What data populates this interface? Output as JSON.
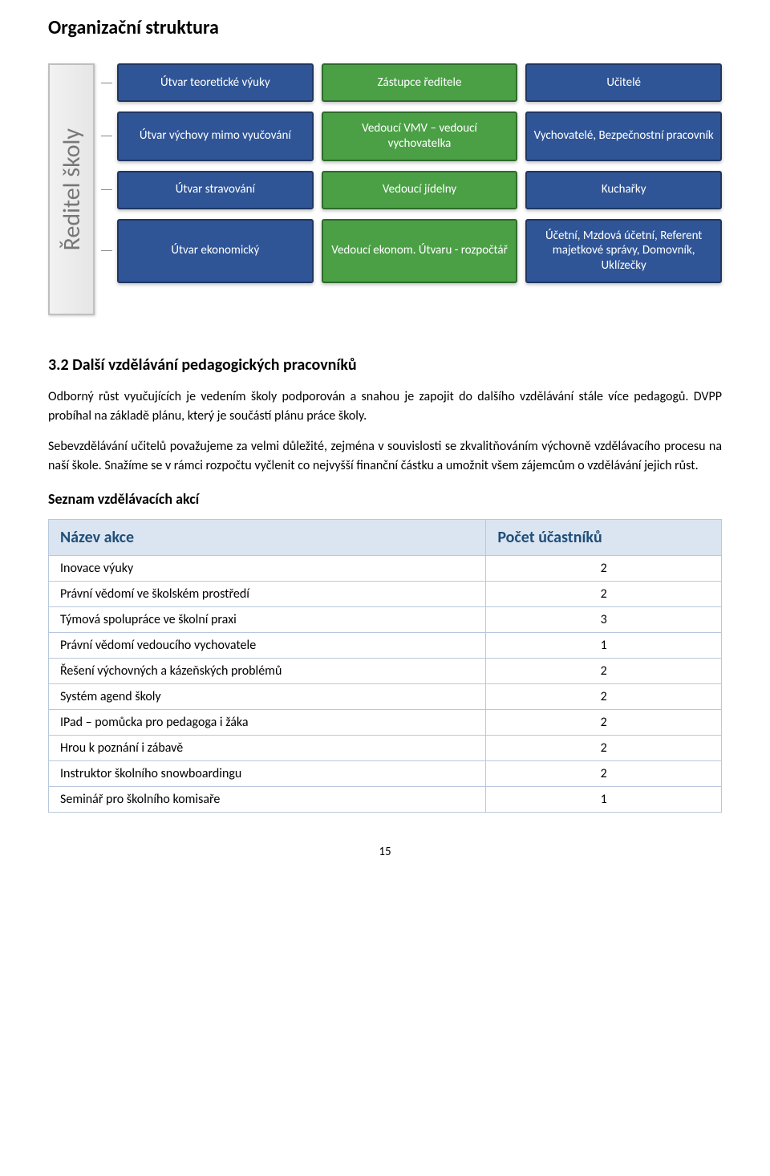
{
  "title": "Organizační struktura",
  "org": {
    "root_label": "Ředitel školy",
    "colors": {
      "blue_bg": "#2f5597",
      "blue_border": "#1f3763",
      "green_bg": "#4ba046",
      "green_border": "#2e6b2b",
      "root_bg": "#ededed",
      "root_border": "#bfbfbf",
      "root_text": "#777777"
    },
    "rows": [
      {
        "cells": [
          {
            "text": "Útvar teoretické výuky",
            "color": "blue"
          },
          {
            "text": "Zástupce ředitele",
            "color": "green"
          },
          {
            "text": "Učitelé",
            "color": "blue"
          }
        ]
      },
      {
        "cells": [
          {
            "text": "Útvar výchovy mimo vyučování",
            "color": "blue"
          },
          {
            "text": "Vedoucí VMV – vedoucí vychovatelka",
            "color": "green"
          },
          {
            "text": "Vychovatelé, Bezpečnostní pracovník",
            "color": "blue"
          }
        ]
      },
      {
        "cells": [
          {
            "text": "Útvar stravování",
            "color": "blue"
          },
          {
            "text": "Vedoucí jídelny",
            "color": "green"
          },
          {
            "text": "Kuchařky",
            "color": "blue"
          }
        ]
      },
      {
        "cells": [
          {
            "text": "Útvar ekonomický",
            "color": "blue"
          },
          {
            "text": "Vedoucí ekonom. Útvaru - rozpočtář",
            "color": "green"
          },
          {
            "text": "Účetní, Mzdová účetní, Referent majetkové správy, Domovník, Uklízečky",
            "color": "blue"
          }
        ]
      }
    ]
  },
  "section": {
    "heading": "3.2 Další vzdělávání pedagogických pracovníků",
    "para1": "Odborný růst vyučujících je vedením školy podporován a snahou je zapojit do dalšího vzdělávání stále více pedagogů. DVPP probíhal na základě plánu, který je součástí plánu práce školy.",
    "para2": "Sebevzdělávání učitelů považujeme za velmi důležité, zejména v souvislosti se zkvalitňováním výchovně vzdělávacího procesu na naší škole. Snažíme se v rámci rozpočtu vyčlenit co nejvyšší finanční částku a umožnit všem zájemcům o vzdělávání jejich růst.",
    "list_heading": "Seznam vzdělávacích akcí"
  },
  "table": {
    "header_name": "Název akce",
    "header_count": "Počet účastníků",
    "header_bg": "#dbe5f1",
    "header_text": "#1f4e79",
    "border_color": "#b8c8dc",
    "rows": [
      {
        "name": "Inovace výuky",
        "count": "2"
      },
      {
        "name": "Právní vědomí ve školském prostředí",
        "count": "2"
      },
      {
        "name": "Týmová spolupráce ve školní praxi",
        "count": "3"
      },
      {
        "name": "Právní vědomí vedoucího vychovatele",
        "count": "1"
      },
      {
        "name": "Řešení výchovných a kázeňských problémů",
        "count": "2"
      },
      {
        "name": "Systém agend školy",
        "count": "2"
      },
      {
        "name": "IPad – pomůcka pro pedagoga i žáka",
        "count": "2"
      },
      {
        "name": "Hrou k poznání i zábavě",
        "count": "2"
      },
      {
        "name": "Instruktor školního snowboardingu",
        "count": "2"
      },
      {
        "name": "Seminář pro školního komisaře",
        "count": "1"
      }
    ]
  },
  "page_number": "15"
}
